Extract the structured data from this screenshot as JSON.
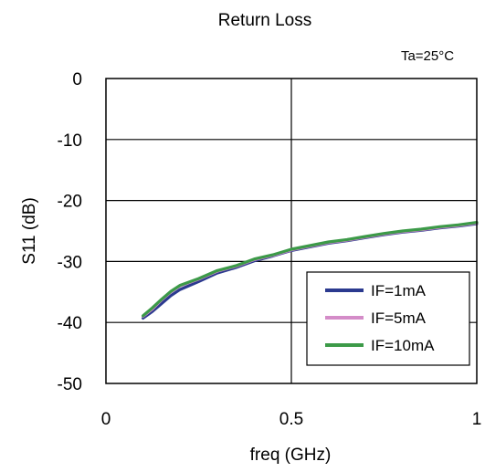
{
  "chart_data": {
    "type": "line",
    "title": "Return Loss",
    "annotation": "Ta=25°C",
    "xlabel": "freq (GHz)",
    "ylabel": "S11 (dB)",
    "xlim": [
      0,
      1
    ],
    "ylim": [
      -50,
      0
    ],
    "x_ticks": [
      "0",
      "0.5",
      "1"
    ],
    "y_ticks": [
      "0",
      "-10",
      "-20",
      "-30",
      "-40",
      "-50"
    ],
    "grid": true,
    "legend_position": "bottom-right",
    "series": [
      {
        "name": "IF=1mA",
        "color": "#2b3a8f",
        "x": [
          0.1,
          0.125,
          0.15,
          0.175,
          0.2,
          0.25,
          0.3,
          0.35,
          0.4,
          0.45,
          0.5,
          0.55,
          0.6,
          0.65,
          0.7,
          0.75,
          0.8,
          0.85,
          0.9,
          0.95,
          1.0
        ],
        "y": [
          -39.3,
          -38.2,
          -36.9,
          -35.6,
          -34.6,
          -33.3,
          -31.9,
          -31.0,
          -29.9,
          -29.1,
          -28.2,
          -27.6,
          -27.0,
          -26.6,
          -26.1,
          -25.6,
          -25.2,
          -24.9,
          -24.5,
          -24.2,
          -23.8
        ]
      },
      {
        "name": "IF=5mA",
        "color": "#d48cc8",
        "x": [
          0.1,
          0.125,
          0.15,
          0.175,
          0.2,
          0.25,
          0.3,
          0.35,
          0.4,
          0.45,
          0.5,
          0.55,
          0.6,
          0.65,
          0.7,
          0.75,
          0.8,
          0.85,
          0.9,
          0.95,
          1.0
        ],
        "y": [
          -39.0,
          -37.8,
          -36.3,
          -35.0,
          -34.0,
          -32.9,
          -31.6,
          -30.8,
          -29.7,
          -29.0,
          -28.1,
          -27.5,
          -26.9,
          -26.5,
          -26.0,
          -25.5,
          -25.1,
          -24.8,
          -24.4,
          -24.1,
          -23.7
        ]
      },
      {
        "name": "IF=10mA",
        "color": "#3c9a48",
        "x": [
          0.1,
          0.125,
          0.15,
          0.175,
          0.2,
          0.25,
          0.3,
          0.35,
          0.4,
          0.45,
          0.5,
          0.55,
          0.6,
          0.65,
          0.7,
          0.75,
          0.8,
          0.85,
          0.9,
          0.95,
          1.0
        ],
        "y": [
          -38.9,
          -37.6,
          -36.2,
          -34.9,
          -33.9,
          -32.8,
          -31.5,
          -30.7,
          -29.6,
          -28.9,
          -28.0,
          -27.4,
          -26.8,
          -26.4,
          -25.9,
          -25.4,
          -25.0,
          -24.7,
          -24.3,
          -24.0,
          -23.6
        ]
      }
    ]
  }
}
